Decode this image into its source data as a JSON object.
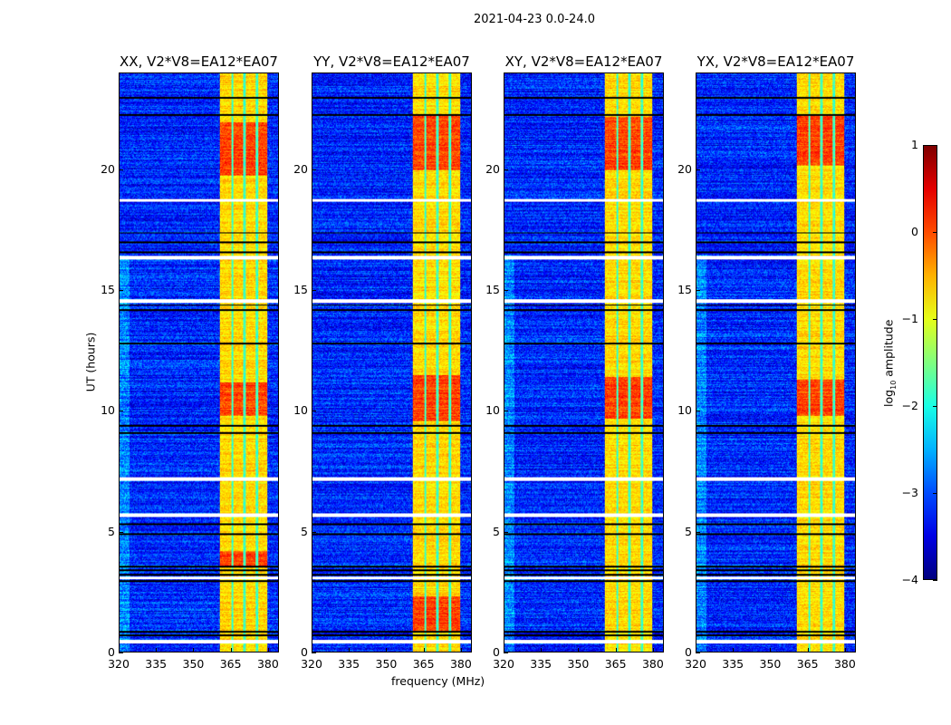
{
  "chart_data": {
    "type": "heatmap",
    "title": "2021-04-23 0.0-24.0",
    "xlabel": "frequency (MHz)",
    "ylabel": "UT (hours)",
    "xlim": [
      320,
      384.4
    ],
    "ylim": [
      0,
      24
    ],
    "xticks": [
      320,
      335,
      350,
      365,
      380
    ],
    "yticks": [
      0,
      5,
      10,
      15,
      20
    ],
    "panels": [
      {
        "title": "XX, V2*V8=EA12*EA07",
        "strong_hours": [
          [
            3.5,
            4.2
          ],
          [
            9.8,
            11.2
          ],
          [
            19.8,
            22
          ]
        ]
      },
      {
        "title": "YY, V2*V8=EA12*EA07",
        "strong_hours": [
          [
            0.8,
            2.3
          ],
          [
            9.6,
            11.5
          ],
          [
            20,
            22.3
          ]
        ]
      },
      {
        "title": "XY, V2*V8=EA12*EA07",
        "strong_hours": [
          [
            9.7,
            11.4
          ],
          [
            20,
            22.2
          ]
        ]
      },
      {
        "title": "YX, V2*V8=EA12*EA07",
        "strong_hours": [
          [
            9.8,
            11.3
          ],
          [
            20.2,
            22.3
          ]
        ]
      }
    ],
    "rfi_band_mhz": [
      360.7,
      380.0
    ],
    "band_notches_mhz": [
      365.7,
      370.5,
      375.6
    ],
    "background_log_amplitude": -3.2,
    "band_log_amplitude": -0.7,
    "flagged_hours": [
      0.4,
      0.45,
      3.05,
      3.1,
      5.65,
      5.7,
      7.15,
      7.2,
      14.55,
      14.6,
      16.35,
      16.4,
      18.75
    ],
    "dark_rows_hours": [
      0.7,
      0.85,
      2.95,
      3.2,
      3.4,
      3.55,
      4.9,
      5.3,
      9.1,
      9.4,
      12.8,
      14.2,
      14.4,
      16.6,
      17.0,
      17.4,
      22.3,
      23.0
    ],
    "colorbar": {
      "label": "log",
      "label_sub": "10",
      "label_rest": " amplitude",
      "vmin": -4,
      "vmax": 1,
      "ticks": [
        1,
        0,
        -1,
        -2,
        -3,
        -4
      ],
      "tick_labels": [
        "1",
        "0",
        "−1",
        "−2",
        "−3",
        "−4"
      ],
      "colormap": "jet"
    }
  }
}
